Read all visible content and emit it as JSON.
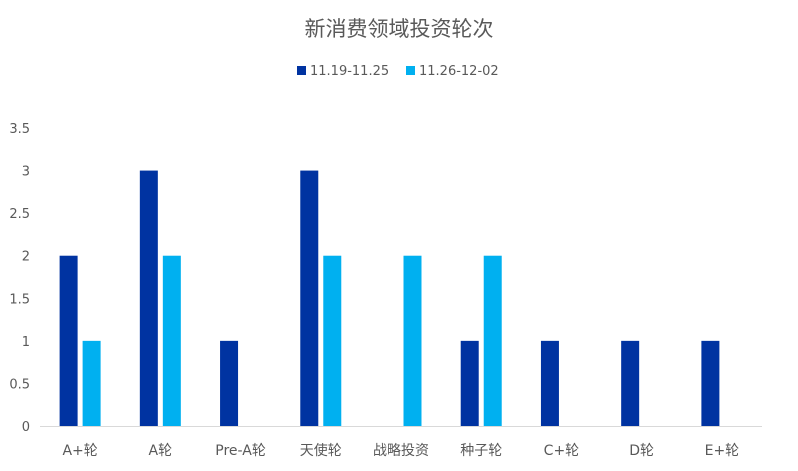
{
  "chart_data": {
    "type": "bar",
    "title": "新消费领域投资轮次",
    "categories": [
      "A+轮",
      "A轮",
      "Pre-A轮",
      "天使轮",
      "战略投资",
      "种子轮",
      "C+轮",
      "D轮",
      "E+轮"
    ],
    "series": [
      {
        "name": "11.19-11.25",
        "color": "#0033A1",
        "values": [
          2,
          3,
          1,
          3,
          0,
          1,
          1,
          1,
          1
        ]
      },
      {
        "name": "11.26-12-02",
        "color": "#00B0F0",
        "values": [
          1,
          2,
          0,
          2,
          2,
          2,
          0,
          0,
          0
        ]
      }
    ],
    "yticks": [
      "0",
      "0.5",
      "1",
      "1.5",
      "2",
      "2.5",
      "3",
      "3.5"
    ],
    "ylim": [
      0,
      3.5
    ],
    "grid": false,
    "legend": "top-center"
  }
}
